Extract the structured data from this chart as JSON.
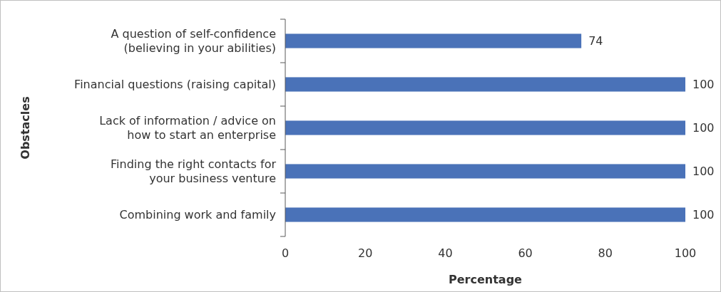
{
  "chart_data": {
    "type": "bar",
    "orientation": "horizontal",
    "xlabel": "Percentage",
    "ylabel": "Obstacles",
    "categories": [
      "A question of self-confidence\n(believing in your abilities)",
      "Financial questions (raising capital)",
      "Lack of information / advice on\nhow to start an enterprise",
      "Finding the right contacts for\nyour business venture",
      "Combining work and family"
    ],
    "values": [
      74,
      100,
      100,
      100,
      100
    ],
    "color": "#4a72b8",
    "xlim": [
      0,
      100
    ],
    "xticks": [
      0,
      20,
      40,
      60,
      80,
      100
    ],
    "data_labels": true
  }
}
